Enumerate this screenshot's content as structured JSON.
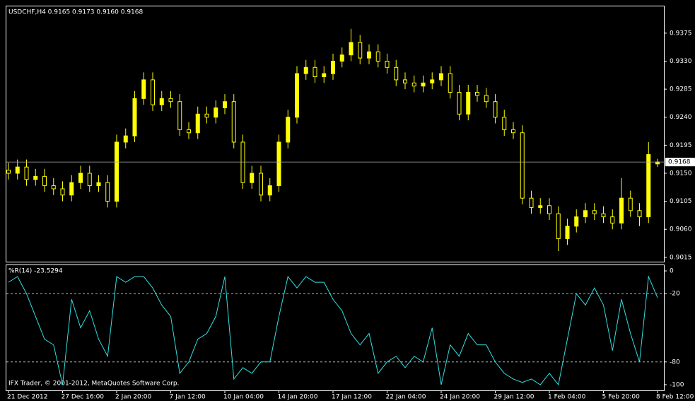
{
  "chart_data": [
    {
      "type": "candlestick",
      "title": "USDCHF,H4  0.9165 0.9173 0.9160 0.9168",
      "categories": [
        "21 Dec 2012",
        null,
        null,
        null,
        null,
        null,
        "27 Dec 16:00",
        null,
        null,
        null,
        null,
        null,
        "2 Jan 20:00",
        null,
        null,
        null,
        null,
        null,
        "7 Jan 12:00",
        null,
        null,
        null,
        null,
        null,
        "10 Jan 04:00",
        null,
        null,
        null,
        null,
        null,
        "14 Jan 20:00",
        null,
        null,
        null,
        null,
        null,
        "17 Jan 12:00",
        null,
        null,
        null,
        null,
        null,
        "22 Jan 04:00",
        null,
        null,
        null,
        null,
        null,
        "24 Jan 20:00",
        null,
        null,
        null,
        null,
        null,
        "29 Jan 12:00",
        null,
        null,
        null,
        null,
        null,
        "1 Feb 04:00",
        null,
        null,
        null,
        null,
        null,
        "5 Feb 20:00",
        null,
        null,
        null,
        null,
        null,
        "8 Feb 12:00"
      ],
      "open": [
        0.9155,
        0.915,
        0.916,
        0.914,
        0.9145,
        0.913,
        0.9125,
        0.9115,
        0.9135,
        0.915,
        0.913,
        0.9135,
        0.9105,
        0.92,
        0.921,
        0.927,
        0.93,
        0.926,
        0.927,
        0.9265,
        0.922,
        0.9215,
        0.9245,
        0.924,
        0.9255,
        0.9265,
        0.92,
        0.9135,
        0.915,
        0.9115,
        0.913,
        0.92,
        0.924,
        0.931,
        0.932,
        0.9305,
        0.931,
        0.933,
        0.934,
        0.936,
        0.9335,
        0.9345,
        0.933,
        0.932,
        0.93,
        0.9295,
        0.929,
        0.9295,
        0.93,
        0.931,
        0.928,
        0.9245,
        0.928,
        0.9275,
        0.9265,
        0.924,
        0.922,
        0.9215,
        0.911,
        0.9095,
        0.9098,
        0.9085,
        0.9045,
        0.9065,
        0.908,
        0.909,
        0.9085,
        0.908,
        0.907,
        0.911,
        0.909,
        0.908,
        0.9165
      ],
      "high": [
        0.9167,
        0.9172,
        0.9172,
        0.9157,
        0.9157,
        0.9142,
        0.9137,
        0.9147,
        0.9162,
        0.9162,
        0.9147,
        0.9147,
        0.9212,
        0.9222,
        0.9282,
        0.9312,
        0.9312,
        0.9282,
        0.9282,
        0.9277,
        0.9232,
        0.9257,
        0.9257,
        0.9267,
        0.9277,
        0.9277,
        0.9212,
        0.9162,
        0.9162,
        0.9142,
        0.9212,
        0.9252,
        0.9322,
        0.9332,
        0.9332,
        0.9322,
        0.9342,
        0.9352,
        0.9382,
        0.9372,
        0.9357,
        0.9357,
        0.9342,
        0.9332,
        0.9312,
        0.9307,
        0.9307,
        0.9312,
        0.9322,
        0.9322,
        0.9292,
        0.9292,
        0.9292,
        0.9287,
        0.9277,
        0.9252,
        0.9232,
        0.9227,
        0.9122,
        0.911,
        0.911,
        0.9097,
        0.9077,
        0.9092,
        0.9102,
        0.9102,
        0.9097,
        0.9092,
        0.9142,
        0.9122,
        0.9102,
        0.92,
        0.9173
      ],
      "low": [
        0.914,
        0.914,
        0.913,
        0.913,
        0.912,
        0.9115,
        0.9105,
        0.9105,
        0.9125,
        0.912,
        0.912,
        0.9095,
        0.9095,
        0.919,
        0.92,
        0.926,
        0.925,
        0.925,
        0.9255,
        0.921,
        0.9205,
        0.9205,
        0.923,
        0.923,
        0.9245,
        0.919,
        0.9125,
        0.9125,
        0.9105,
        0.9105,
        0.912,
        0.919,
        0.923,
        0.93,
        0.9295,
        0.9295,
        0.93,
        0.932,
        0.933,
        0.9325,
        0.9325,
        0.932,
        0.931,
        0.929,
        0.9285,
        0.928,
        0.928,
        0.9285,
        0.929,
        0.927,
        0.9235,
        0.9235,
        0.9265,
        0.9255,
        0.923,
        0.921,
        0.9205,
        0.91,
        0.9085,
        0.9085,
        0.9075,
        0.9025,
        0.9035,
        0.9055,
        0.907,
        0.9075,
        0.907,
        0.906,
        0.906,
        0.908,
        0.9065,
        0.907,
        0.916
      ],
      "close": [
        0.915,
        0.916,
        0.914,
        0.9145,
        0.913,
        0.9125,
        0.9115,
        0.9135,
        0.915,
        0.913,
        0.9135,
        0.9105,
        0.92,
        0.921,
        0.927,
        0.93,
        0.926,
        0.927,
        0.9265,
        0.922,
        0.9215,
        0.9245,
        0.924,
        0.9255,
        0.9265,
        0.92,
        0.9135,
        0.915,
        0.9115,
        0.913,
        0.92,
        0.924,
        0.931,
        0.932,
        0.9305,
        0.931,
        0.933,
        0.934,
        0.936,
        0.9335,
        0.9345,
        0.933,
        0.932,
        0.93,
        0.9295,
        0.929,
        0.9295,
        0.93,
        0.931,
        0.928,
        0.9245,
        0.928,
        0.9275,
        0.9265,
        0.924,
        0.922,
        0.9215,
        0.911,
        0.9095,
        0.9098,
        0.9085,
        0.9045,
        0.9065,
        0.908,
        0.909,
        0.9085,
        0.908,
        0.907,
        0.911,
        0.909,
        0.908,
        0.918,
        0.9168
      ],
      "color": "#ffff00",
      "last_price": 0.9168,
      "ylim": [
        0.9008,
        0.9418
      ],
      "yticks": [
        0.9375,
        {
          "value": 0.933,
          "label": "0.9330"
        },
        0.9285,
        {
          "value": 0.924,
          "label": "0.9240"
        },
        0.9195,
        {
          "value": 0.915,
          "label": "0.9150"
        },
        0.9105,
        {
          "value": 0.906,
          "label": "0.9060"
        },
        0.9015
      ]
    },
    {
      "type": "line",
      "title": "%R(14) -23.5294",
      "annotation": "IFX Trader, © 2001-2012, MetaQuotes Software Corp.",
      "series": [
        {
          "name": "%R(14)",
          "color": "#33e0e0",
          "values": [
            -10,
            -5,
            -20,
            -40,
            -60,
            -65,
            -100,
            -25,
            -50,
            -35,
            -60,
            -75,
            -5,
            -10,
            -5,
            -5,
            -15,
            -30,
            -40,
            -90,
            -80,
            -60,
            -55,
            -40,
            -5,
            -95,
            -85,
            -90,
            -80,
            -80,
            -40,
            -5,
            -15,
            -5,
            -10,
            -10,
            -25,
            -35,
            -55,
            -65,
            -55,
            -90,
            -80,
            -75,
            -85,
            -75,
            -80,
            -50,
            -100,
            -65,
            -75,
            -55,
            -65,
            -65,
            -80,
            -90,
            -95,
            -98,
            -95,
            -100,
            -90,
            -100,
            -60,
            -20,
            -30,
            -15,
            -30,
            -70,
            -25,
            -55,
            -80,
            -5,
            -23.5294
          ]
        }
      ],
      "levels": [
        -20,
        -80
      ],
      "ylim": [
        -105,
        5
      ],
      "yticks": [
        0,
        -20,
        -80,
        -100
      ]
    }
  ]
}
